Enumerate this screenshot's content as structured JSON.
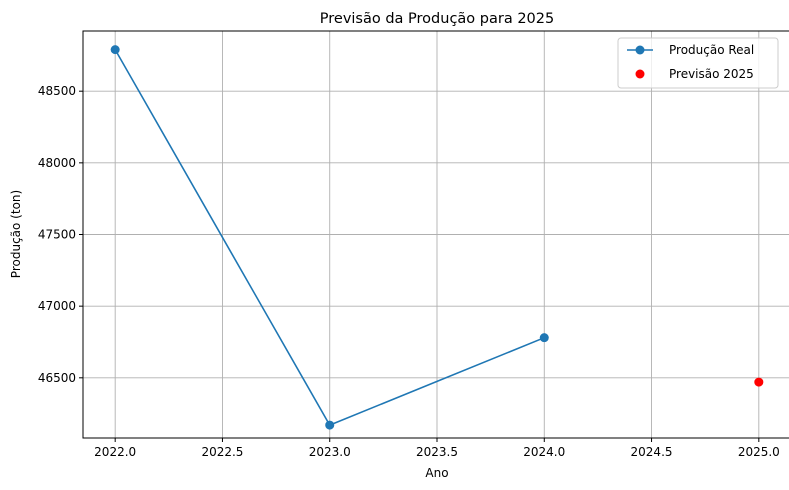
{
  "chart_data": {
    "type": "line",
    "title": "Previsão da Produção para 2025",
    "xlabel": "Ano",
    "ylabel": "Produção (ton)",
    "xlim": [
      2021.85,
      2025.15
    ],
    "ylim": [
      46080,
      48920
    ],
    "x_ticks": [
      2022.0,
      2022.5,
      2023.0,
      2023.5,
      2024.0,
      2024.5,
      2025.0
    ],
    "x_tick_labels": [
      "2022.0",
      "2022.5",
      "2023.0",
      "2023.5",
      "2024.0",
      "2024.5",
      "2025.0"
    ],
    "y_ticks": [
      46500,
      47000,
      47500,
      48000,
      48500
    ],
    "y_tick_labels": [
      "46500",
      "47000",
      "47500",
      "48000",
      "48500"
    ],
    "grid": true,
    "legend_position": "top-right",
    "series": [
      {
        "name": "Produção Real",
        "style": "line-marker",
        "color": "#1f77b4",
        "x": [
          2022,
          2023,
          2024
        ],
        "y": [
          48790,
          46170,
          46780
        ]
      },
      {
        "name": "Previsão 2025",
        "style": "marker",
        "color": "#ff0000",
        "x": [
          2025
        ],
        "y": [
          46470
        ]
      }
    ]
  }
}
